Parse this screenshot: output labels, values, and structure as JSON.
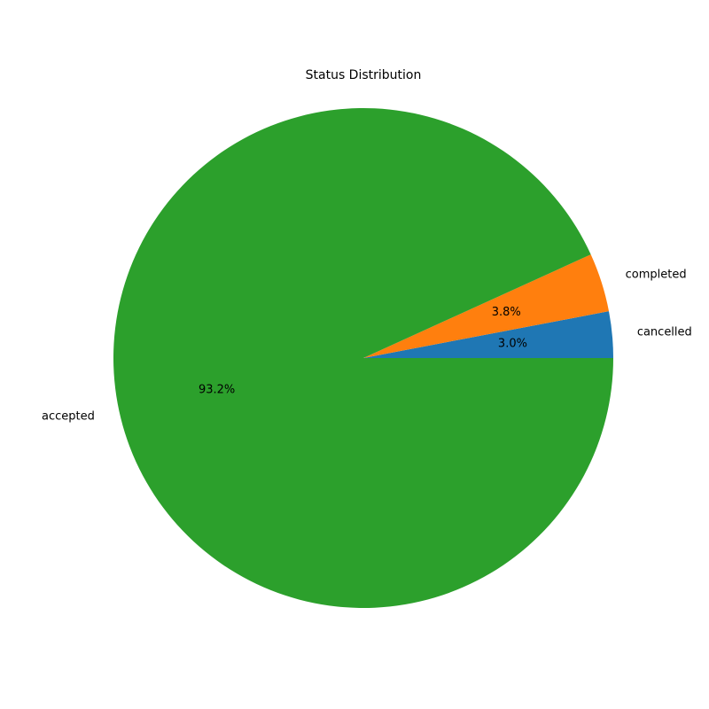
{
  "chart_data": {
    "type": "pie",
    "title": "Status Distribution",
    "start_angle_deg": 0,
    "direction": "counterclockwise",
    "slices": [
      {
        "label": "cancelled",
        "percent": 3.0,
        "pct_text": "3.0%",
        "color": "#1f77b4"
      },
      {
        "label": "completed",
        "percent": 3.8,
        "pct_text": "3.8%",
        "color": "#ff7f0e"
      },
      {
        "label": "accepted",
        "percent": 93.2,
        "pct_text": "93.2%",
        "color": "#2ca02c"
      }
    ]
  }
}
